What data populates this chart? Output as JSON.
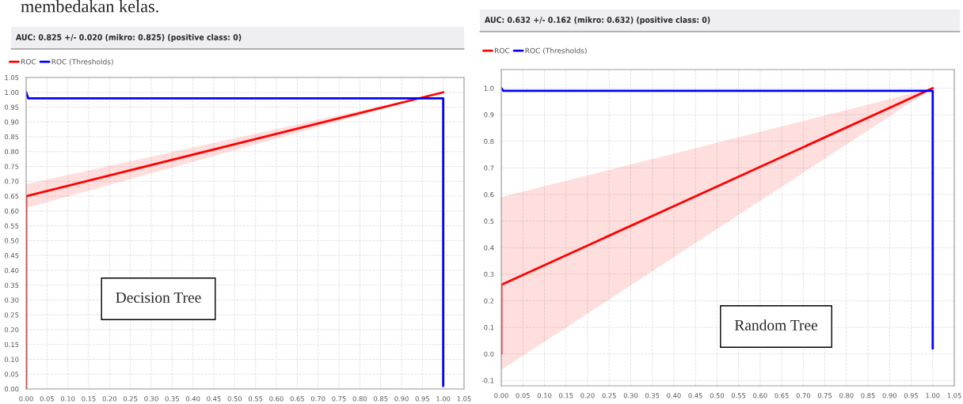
{
  "chart_data": [
    {
      "type": "line",
      "title": "AUC: 0.825 +/- 0.020 (mikro: 0.825) (positive class: 0)",
      "annotations": [
        "membedakan kelas.",
        "Decision Tree"
      ],
      "series": [
        {
          "name": "ROC",
          "color": "#ff0000",
          "x": [
            0,
            0,
            1
          ],
          "values": [
            0,
            0.65,
            1
          ],
          "lower": [
            null,
            0.61,
            1
          ],
          "upper": [
            null,
            0.69,
            1
          ]
        },
        {
          "name": "ROC (Thresholds)",
          "color": "#0000ff",
          "x": [
            0,
            0.005,
            1,
            1
          ],
          "values": [
            1.0,
            0.98,
            0.98,
            0.01
          ]
        }
      ],
      "xlim": [
        0,
        1.05
      ],
      "xticks": [
        {
          "value": 0,
          "label": "0.00"
        },
        {
          "value": 0.05,
          "label": "0.05"
        },
        {
          "value": 0.1,
          "label": "0.10"
        },
        {
          "value": 0.15,
          "label": "0.15"
        },
        {
          "value": 0.2,
          "label": "0.20"
        },
        {
          "value": 0.25,
          "label": "0.25"
        },
        {
          "value": 0.3,
          "label": "0.30"
        },
        {
          "value": 0.35,
          "label": "0.35"
        },
        {
          "value": 0.4,
          "label": "0.40"
        },
        {
          "value": 0.45,
          "label": "0.45"
        },
        {
          "value": 0.5,
          "label": "0.50"
        },
        {
          "value": 0.55,
          "label": "0.55"
        },
        {
          "value": 0.6,
          "label": "0.60"
        },
        {
          "value": 0.65,
          "label": "0.65"
        },
        {
          "value": 0.7,
          "label": "0.70"
        },
        {
          "value": 0.75,
          "label": "0.75"
        },
        {
          "value": 0.8,
          "label": "0.80"
        },
        {
          "value": 0.85,
          "label": "0.85"
        },
        {
          "value": 0.9,
          "label": "0.90"
        },
        {
          "value": 0.95,
          "label": "0.95"
        },
        {
          "value": 1.0,
          "label": "1.00"
        },
        {
          "value": 1.05,
          "label": "1.05"
        }
      ],
      "ylim": [
        0,
        1.05
      ],
      "yticks": [
        {
          "value": 0,
          "label": "0.00"
        },
        {
          "value": 0.05,
          "label": "0.05"
        },
        {
          "value": 0.1,
          "label": "0.10"
        },
        {
          "value": 0.15,
          "label": "0.15"
        },
        {
          "value": 0.2,
          "label": "0.20"
        },
        {
          "value": 0.25,
          "label": "0.25"
        },
        {
          "value": 0.3,
          "label": "0.30"
        },
        {
          "value": 0.35,
          "label": "0.35"
        },
        {
          "value": 0.4,
          "label": "0.40"
        },
        {
          "value": 0.45,
          "label": "0.45"
        },
        {
          "value": 0.5,
          "label": "0.50"
        },
        {
          "value": 0.55,
          "label": "0.55"
        },
        {
          "value": 0.6,
          "label": "0.60"
        },
        {
          "value": 0.65,
          "label": "0.65"
        },
        {
          "value": 0.7,
          "label": "0.70"
        },
        {
          "value": 0.75,
          "label": "0.75"
        },
        {
          "value": 0.8,
          "label": "0.80"
        },
        {
          "value": 0.85,
          "label": "0.85"
        },
        {
          "value": 0.9,
          "label": "0.90"
        },
        {
          "value": 0.95,
          "label": "0.95"
        },
        {
          "value": 1.0,
          "label": "1.00"
        },
        {
          "value": 1.05,
          "label": "1.05"
        }
      ],
      "grid": true,
      "legend": "top left",
      "marker": "none",
      "line_style": "solid"
    },
    {
      "type": "line",
      "title": "AUC: 0.632 +/- 0.162 (mikro: 0.632) (positive class: 0)",
      "annotations": [
        "Random Tree"
      ],
      "series": [
        {
          "name": "ROC",
          "color": "#ff0000",
          "x": [
            0,
            0,
            1
          ],
          "values": [
            0,
            0.26,
            1
          ],
          "lower": [
            null,
            -0.06,
            1
          ],
          "upper": [
            null,
            0.59,
            1
          ]
        },
        {
          "name": "ROC (Thresholds)",
          "color": "#0000ff",
          "x": [
            0,
            0.005,
            1,
            1
          ],
          "values": [
            1.0,
            0.99,
            0.99,
            0.02
          ]
        }
      ],
      "xlim": [
        0,
        1.05
      ],
      "xticks": [
        {
          "value": 0,
          "label": "0.00"
        },
        {
          "value": 0.05,
          "label": "0.05"
        },
        {
          "value": 0.1,
          "label": "0.10"
        },
        {
          "value": 0.15,
          "label": "0.15"
        },
        {
          "value": 0.2,
          "label": "0.20"
        },
        {
          "value": 0.25,
          "label": "0.25"
        },
        {
          "value": 0.3,
          "label": "0.30"
        },
        {
          "value": 0.35,
          "label": "0.35"
        },
        {
          "value": 0.4,
          "label": "0.40"
        },
        {
          "value": 0.45,
          "label": "0.45"
        },
        {
          "value": 0.5,
          "label": "0.50"
        },
        {
          "value": 0.55,
          "label": "0.55"
        },
        {
          "value": 0.6,
          "label": "0.60"
        },
        {
          "value": 0.65,
          "label": "0.65"
        },
        {
          "value": 0.7,
          "label": "0.70"
        },
        {
          "value": 0.75,
          "label": "0.75"
        },
        {
          "value": 0.8,
          "label": "0.80"
        },
        {
          "value": 0.85,
          "label": "0.85"
        },
        {
          "value": 0.9,
          "label": "0.90"
        },
        {
          "value": 0.95,
          "label": "0.95"
        },
        {
          "value": 1.0,
          "label": "1.00"
        },
        {
          "value": 1.05,
          "label": "1.05"
        }
      ],
      "ylim": [
        -0.12,
        1.07
      ],
      "yticks": [
        {
          "value": -0.1,
          "label": "-0.1"
        },
        {
          "value": 0,
          "label": "0.0"
        },
        {
          "value": 0.1,
          "label": "0.1"
        },
        {
          "value": 0.2,
          "label": "0.2"
        },
        {
          "value": 0.3,
          "label": "0.3"
        },
        {
          "value": 0.4,
          "label": "0.4"
        },
        {
          "value": 0.5,
          "label": "0.5"
        },
        {
          "value": 0.6,
          "label": "0.6"
        },
        {
          "value": 0.7,
          "label": "0.7"
        },
        {
          "value": 0.8,
          "label": "0.8"
        },
        {
          "value": 0.9,
          "label": "0.9"
        },
        {
          "value": 1.0,
          "label": "1.0"
        }
      ],
      "grid": true,
      "legend": "top left",
      "marker": "none",
      "line_style": "solid"
    }
  ]
}
